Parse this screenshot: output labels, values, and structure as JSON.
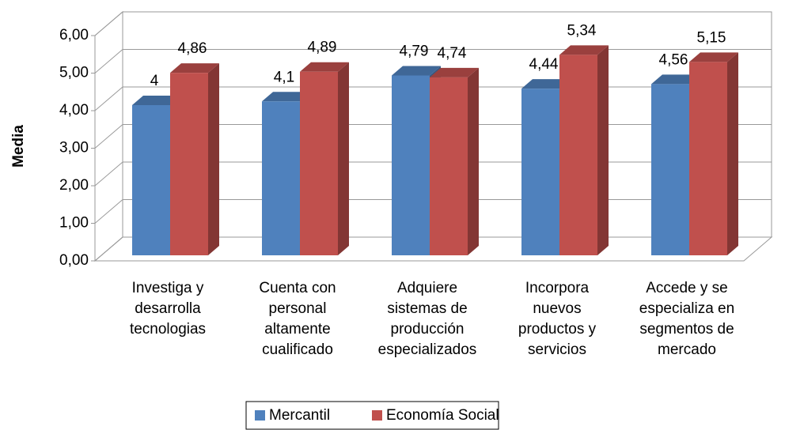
{
  "chart_data": {
    "type": "bar3d",
    "y_label": "Media",
    "categories": [
      "Investiga y desarrolla tecnologias",
      "Cuenta con personal altamente cualificado",
      "Adquiere sistemas de producción especializados",
      "Incorpora nuevos productos y servicios",
      "Accede y se especializa en segmentos de mercado"
    ],
    "series": [
      {
        "name": "Mercantil",
        "color": "#4f81bd",
        "values": [
          4,
          4.1,
          4.79,
          4.44,
          4.56
        ],
        "value_labels": [
          "4",
          "4,1",
          "4,79",
          "4,44",
          "4,56"
        ]
      },
      {
        "name": "Economía Social",
        "color": "#c0504d",
        "values": [
          4.86,
          4.89,
          4.74,
          5.34,
          5.15
        ],
        "value_labels": [
          "4,86",
          "4,89",
          "4,74",
          "5,34",
          "5,15"
        ]
      }
    ],
    "ylim": [
      0,
      6
    ],
    "yticks": [
      {
        "value": 0,
        "label": "0,00"
      },
      {
        "value": 1,
        "label": "1,00"
      },
      {
        "value": 2,
        "label": "2,00"
      },
      {
        "value": 3,
        "label": "3,00"
      },
      {
        "value": 4,
        "label": "4,00"
      },
      {
        "value": 5,
        "label": "5,00"
      },
      {
        "value": 6,
        "label": "6,00"
      }
    ],
    "grid": true,
    "legend": "bottom"
  }
}
